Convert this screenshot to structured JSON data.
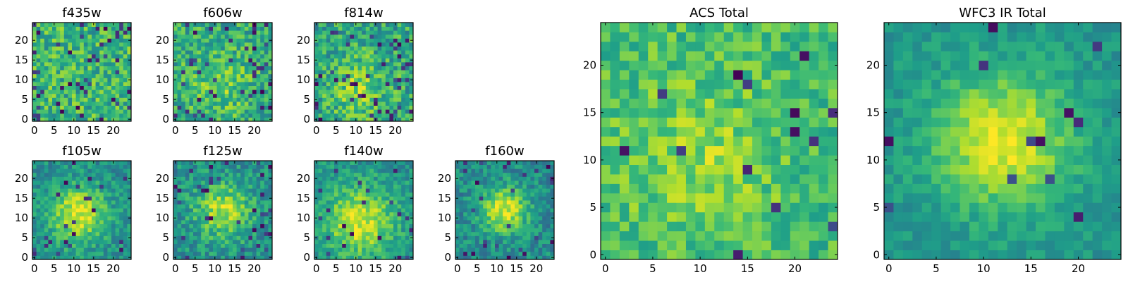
{
  "chart_data": [
    {
      "type": "heatmap",
      "title": "f435w",
      "grid_size": 25,
      "colormap": "viridis",
      "xticks": [
        0,
        5,
        10,
        15,
        20
      ],
      "yticks": [
        0,
        5,
        10,
        15,
        20
      ],
      "xlim": [
        -0.5,
        24.5
      ],
      "ylim": [
        -0.5,
        24.5
      ],
      "pattern": "uniform noise",
      "center": [
        12,
        12
      ],
      "peak_strength": 0.0,
      "spread": 6,
      "noise": 0.42,
      "base_level": 0.66,
      "dark_pixel_rate": 0.08,
      "seed": 11
    },
    {
      "type": "heatmap",
      "title": "f606w",
      "grid_size": 25,
      "colormap": "viridis",
      "xticks": [
        0,
        5,
        10,
        15,
        20
      ],
      "yticks": [
        0,
        5,
        10,
        15,
        20
      ],
      "xlim": [
        -0.5,
        24.5
      ],
      "ylim": [
        -0.5,
        24.5
      ],
      "pattern": "noise with faint central source",
      "center": [
        11,
        9
      ],
      "peak_strength": 0.18,
      "spread": 5,
      "noise": 0.4,
      "base_level": 0.62,
      "dark_pixel_rate": 0.07,
      "seed": 23
    },
    {
      "type": "heatmap",
      "title": "f814w",
      "grid_size": 25,
      "colormap": "viridis",
      "xticks": [
        0,
        5,
        10,
        15,
        20
      ],
      "yticks": [
        0,
        5,
        10,
        15,
        20
      ],
      "xlim": [
        -0.5,
        24.5
      ],
      "ylim": [
        -0.5,
        24.5
      ],
      "pattern": "noise with faint central source",
      "center": [
        11,
        8
      ],
      "peak_strength": 0.2,
      "spread": 5,
      "noise": 0.42,
      "base_level": 0.6,
      "dark_pixel_rate": 0.07,
      "seed": 37
    },
    {
      "type": "heatmap",
      "title": "f105w",
      "grid_size": 25,
      "colormap": "viridis",
      "xticks": [
        0,
        5,
        10,
        15,
        20
      ],
      "yticks": [
        0,
        5,
        10,
        15,
        20
      ],
      "xlim": [
        -0.5,
        24.5
      ],
      "ylim": [
        -0.5,
        24.5
      ],
      "pattern": "central source",
      "center": [
        11,
        11
      ],
      "peak_strength": 0.45,
      "spread": 5,
      "noise": 0.28,
      "base_level": 0.5,
      "dark_pixel_rate": 0.035,
      "seed": 51
    },
    {
      "type": "heatmap",
      "title": "f125w",
      "grid_size": 25,
      "colormap": "viridis",
      "xticks": [
        0,
        5,
        10,
        15,
        20
      ],
      "yticks": [
        0,
        5,
        10,
        15,
        20
      ],
      "xlim": [
        -0.5,
        24.5
      ],
      "ylim": [
        -0.5,
        24.5
      ],
      "pattern": "central source",
      "center": [
        12,
        12
      ],
      "peak_strength": 0.38,
      "spread": 5,
      "noise": 0.32,
      "base_level": 0.5,
      "dark_pixel_rate": 0.05,
      "seed": 67
    },
    {
      "type": "heatmap",
      "title": "f140w",
      "grid_size": 25,
      "colormap": "viridis",
      "xticks": [
        0,
        5,
        10,
        15,
        20
      ],
      "yticks": [
        0,
        5,
        10,
        15,
        20
      ],
      "xlim": [
        -0.5,
        24.5
      ],
      "ylim": [
        -0.5,
        24.5
      ],
      "pattern": "central source",
      "center": [
        11,
        9
      ],
      "peak_strength": 0.42,
      "spread": 6,
      "noise": 0.28,
      "base_level": 0.52,
      "dark_pixel_rate": 0.035,
      "seed": 83
    },
    {
      "type": "heatmap",
      "title": "f160w",
      "grid_size": 25,
      "colormap": "viridis",
      "xticks": [
        0,
        5,
        10,
        15,
        20
      ],
      "yticks": [
        0,
        5,
        10,
        15,
        20
      ],
      "xlim": [
        -0.5,
        24.5
      ],
      "ylim": [
        -0.5,
        24.5
      ],
      "pattern": "central source",
      "center": [
        12,
        12
      ],
      "peak_strength": 0.48,
      "spread": 4,
      "noise": 0.3,
      "base_level": 0.48,
      "dark_pixel_rate": 0.045,
      "seed": 97
    },
    {
      "type": "heatmap",
      "title": "ACS Total",
      "grid_size": 25,
      "colormap": "viridis",
      "xticks": [
        0,
        5,
        10,
        15,
        20
      ],
      "yticks": [
        0,
        5,
        10,
        15,
        20
      ],
      "xlim": [
        -0.5,
        24.5
      ],
      "ylim": [
        -0.5,
        24.5
      ],
      "pattern": "noise with faint central source",
      "center": [
        10,
        10
      ],
      "peak_strength": 0.15,
      "spread": 6,
      "noise": 0.3,
      "base_level": 0.68,
      "dark_pixel_rate": 0.03,
      "seed": 131
    },
    {
      "type": "heatmap",
      "title": "WFC3 IR Total",
      "grid_size": 25,
      "colormap": "viridis",
      "xticks": [
        0,
        5,
        10,
        15,
        20
      ],
      "yticks": [
        0,
        5,
        10,
        15,
        20
      ],
      "xlim": [
        -0.5,
        24.5
      ],
      "ylim": [
        -0.5,
        24.5
      ],
      "pattern": "central source",
      "center": [
        12,
        12
      ],
      "peak_strength": 0.45,
      "spread": 5,
      "noise": 0.18,
      "base_level": 0.52,
      "dark_pixel_rate": 0.02,
      "seed": 149
    }
  ]
}
